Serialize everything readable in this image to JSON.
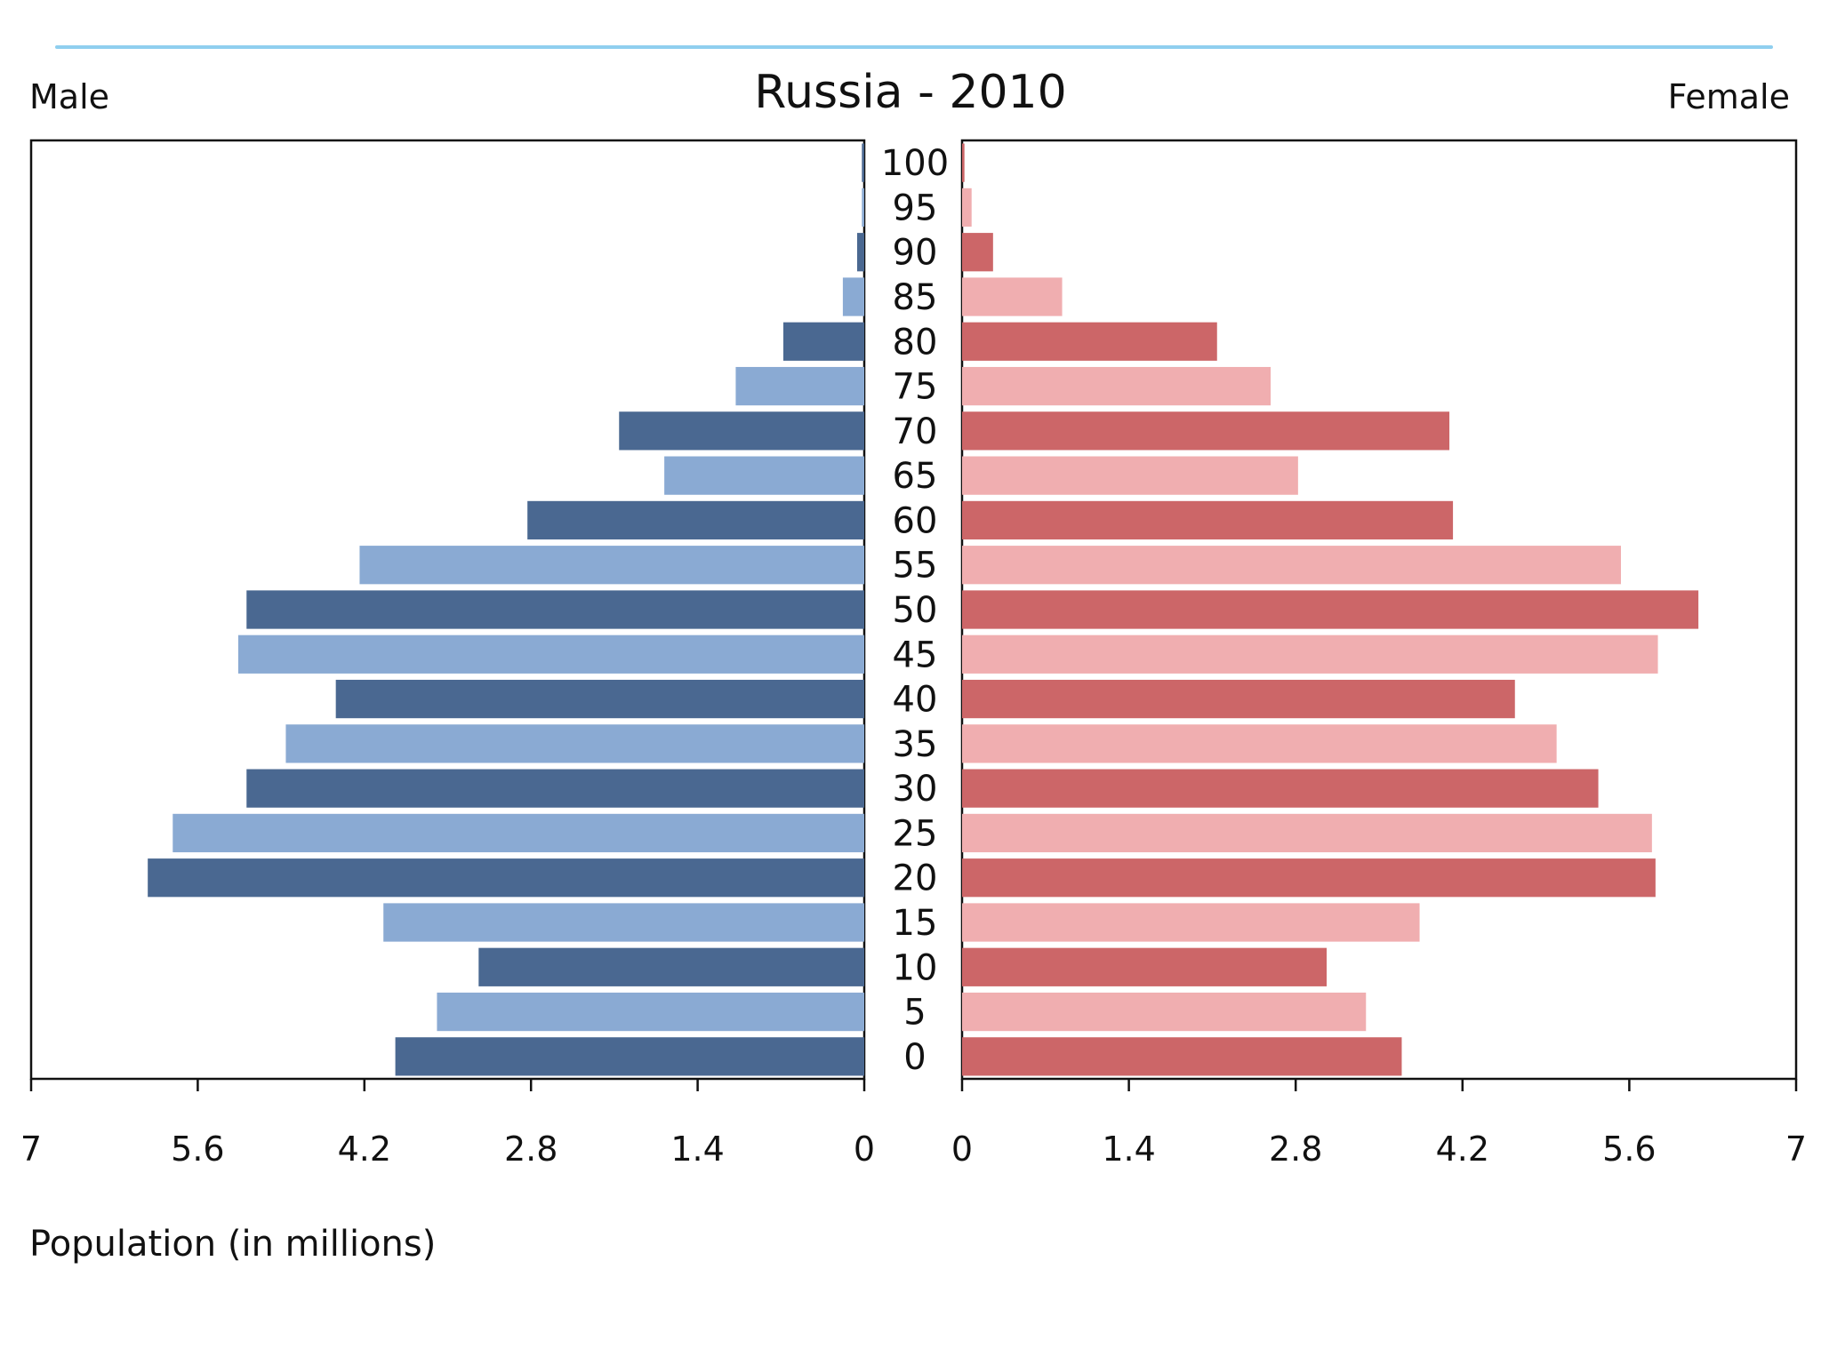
{
  "header": {
    "rule_color": "#8fcfef"
  },
  "chart_data": {
    "type": "bar",
    "title": "Russia - 2010",
    "left_label": "Male",
    "right_label": "Female",
    "xlabel": "Population (in millions)",
    "orientation": "horizontal-pyramid",
    "xlim": [
      0,
      7
    ],
    "x_ticks_left": [
      "7",
      "5.6",
      "4.2",
      "2.8",
      "1.4",
      "0"
    ],
    "x_ticks_right": [
      "0",
      "1.4",
      "2.8",
      "4.2",
      "5.6",
      "7"
    ],
    "x_tick_values": [
      0,
      1.4,
      2.8,
      4.2,
      5.6,
      7
    ],
    "categories": [
      "100",
      "95",
      "90",
      "85",
      "80",
      "75",
      "70",
      "65",
      "60",
      "55",
      "50",
      "45",
      "40",
      "35",
      "30",
      "25",
      "20",
      "15",
      "10",
      "5",
      "0"
    ],
    "series": [
      {
        "name": "Male",
        "colors": [
          "#4a6891",
          "#8aaad3"
        ],
        "values": [
          0.02,
          0.02,
          0.06,
          0.18,
          0.68,
          1.08,
          2.06,
          1.68,
          2.83,
          4.24,
          5.19,
          5.26,
          4.44,
          4.86,
          5.19,
          5.81,
          6.02,
          4.04,
          3.24,
          3.59,
          3.94
        ]
      },
      {
        "name": "Female",
        "colors": [
          "#cc6668",
          "#f0aeb0"
        ],
        "values": [
          0.02,
          0.08,
          0.26,
          0.84,
          2.14,
          2.59,
          4.09,
          2.82,
          4.12,
          5.53,
          6.18,
          5.84,
          4.64,
          4.99,
          5.34,
          5.79,
          5.82,
          3.84,
          3.06,
          3.39,
          3.69
        ]
      }
    ]
  }
}
